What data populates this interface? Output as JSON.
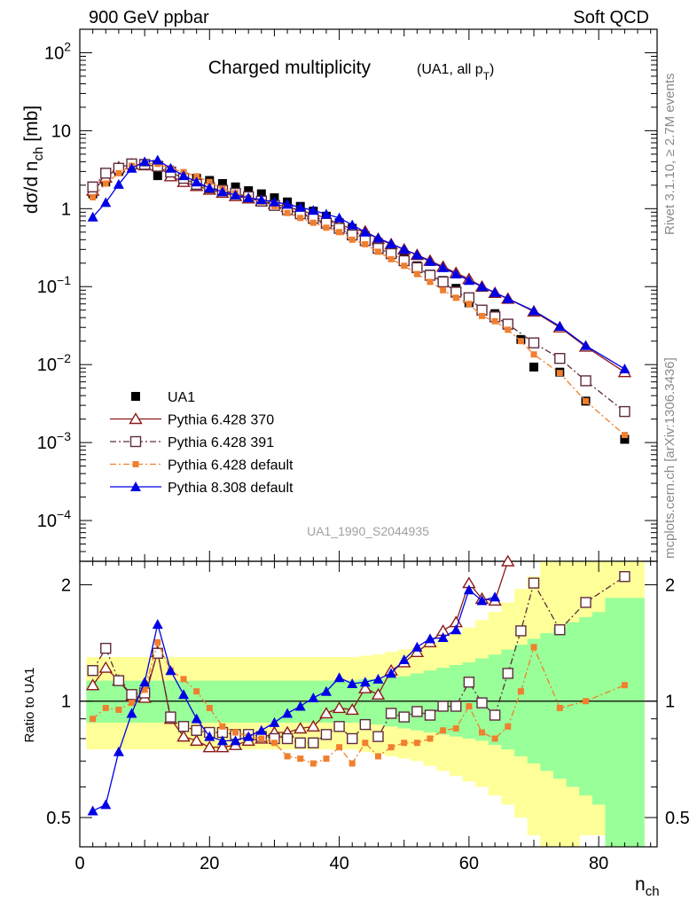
{
  "header": {
    "left": "900 GeV ppbar",
    "right": "Soft QCD"
  },
  "title": {
    "main": "Charged multiplicity",
    "sub_prefix": "(UA1, all p",
    "sub_sub": "T",
    "sub_suffix": ")"
  },
  "side_labels": {
    "top": "Rivet 3.1.10, ≥ 2.7M events",
    "bottom": "mcplots.cern.ch [arXiv:1306.3436]"
  },
  "watermark": "UA1_1990_S2044935",
  "axes": {
    "ylabel_main_prefix": "dσ/d n",
    "ylabel_main_sub": "ch",
    "ylabel_main_suffix": " [mb]",
    "ylabel_ratio": "Ratio to UA1",
    "xlabel": "n",
    "xlabel_sub": "ch"
  },
  "chart_data": [
    {
      "type": "scatter",
      "panel": "main",
      "log_y": true,
      "xlim": [
        0,
        89
      ],
      "ylim": [
        3e-05,
        200
      ],
      "x_ticks": [
        0,
        20,
        40,
        60,
        80
      ],
      "y_ticks": [
        {
          "value": 0.0001,
          "base": "10",
          "exp": "−4"
        },
        {
          "value": 0.001,
          "base": "10",
          "exp": "−3"
        },
        {
          "value": 0.01,
          "base": "10",
          "exp": "−2"
        },
        {
          "value": 0.1,
          "base": "10",
          "exp": "−1"
        },
        {
          "value": 1,
          "base": "1",
          "exp": ""
        },
        {
          "value": 10,
          "base": "10",
          "exp": ""
        },
        {
          "value": 100,
          "base": "10",
          "exp": "2"
        }
      ],
      "legend_position": "bottom-left",
      "series": [
        {
          "name": "UA1",
          "style": "data",
          "color": "#000000",
          "x": [
            2,
            4,
            6,
            8,
            10,
            12,
            14,
            16,
            18,
            20,
            22,
            24,
            26,
            28,
            30,
            32,
            34,
            36,
            38,
            40,
            42,
            44,
            46,
            48,
            50,
            52,
            54,
            56,
            58,
            60,
            62,
            64,
            66,
            68,
            70,
            74,
            78,
            84
          ],
          "y": [
            1.55,
            2.2,
            3.0,
            3.6,
            3.55,
            2.65,
            2.75,
            2.55,
            2.45,
            2.3,
            2.1,
            1.9,
            1.7,
            1.55,
            1.38,
            1.22,
            1.07,
            0.93,
            0.8,
            0.66,
            0.56,
            0.45,
            0.37,
            0.3,
            0.235,
            0.185,
            0.145,
            0.12,
            0.095,
            0.062,
            0.051,
            0.045,
            0.033,
            0.021,
            0.0093,
            0.008,
            0.0034,
            0.0011
          ]
        },
        {
          "name": "Pythia 6.428 370",
          "style": "open-triangle-solid",
          "color": "#8b1a1a",
          "x": [
            2,
            4,
            6,
            8,
            10,
            12,
            14,
            16,
            18,
            20,
            22,
            24,
            26,
            28,
            30,
            32,
            34,
            36,
            38,
            40,
            42,
            44,
            46,
            48,
            50,
            52,
            54,
            56,
            58,
            60,
            62,
            64,
            66,
            70,
            74,
            78,
            84
          ],
          "y": [
            1.7,
            2.5,
            3.4,
            3.7,
            3.6,
            3.55,
            2.6,
            2.2,
            1.95,
            1.75,
            1.6,
            1.45,
            1.35,
            1.25,
            1.15,
            1.05,
            0.95,
            0.85,
            0.76,
            0.63,
            0.55,
            0.51,
            0.41,
            0.35,
            0.3,
            0.255,
            0.215,
            0.18,
            0.15,
            0.125,
            0.1,
            0.083,
            0.07,
            0.048,
            0.03,
            0.017,
            0.008
          ]
        },
        {
          "name": "Pythia 6.428 391",
          "style": "open-square-dashdot",
          "color": "#5e2c3c",
          "x": [
            2,
            4,
            6,
            8,
            10,
            12,
            14,
            16,
            18,
            20,
            22,
            24,
            26,
            28,
            30,
            32,
            34,
            36,
            38,
            40,
            42,
            44,
            46,
            48,
            50,
            52,
            54,
            56,
            58,
            60,
            62,
            64,
            66,
            70,
            74,
            78,
            84
          ],
          "y": [
            1.9,
            2.85,
            3.3,
            3.75,
            3.7,
            3.5,
            2.95,
            2.45,
            2.05,
            1.85,
            1.72,
            1.57,
            1.42,
            1.25,
            1.1,
            0.97,
            0.86,
            0.75,
            0.65,
            0.56,
            0.46,
            0.39,
            0.31,
            0.265,
            0.215,
            0.175,
            0.14,
            0.115,
            0.085,
            0.072,
            0.05,
            0.041,
            0.033,
            0.019,
            0.012,
            0.0062,
            0.0025
          ]
        },
        {
          "name": "Pythia 6.428 default",
          "style": "filled-square-dashdot",
          "color": "#f07f2e",
          "x": [
            2,
            4,
            6,
            8,
            10,
            12,
            14,
            16,
            18,
            20,
            22,
            24,
            26,
            28,
            30,
            32,
            34,
            36,
            38,
            40,
            42,
            44,
            46,
            48,
            50,
            52,
            54,
            56,
            58,
            60,
            62,
            64,
            66,
            68,
            70,
            74,
            78,
            84
          ],
          "y": [
            1.4,
            2.1,
            2.85,
            3.55,
            3.8,
            3.75,
            3.3,
            2.95,
            2.6,
            2.2,
            1.8,
            1.58,
            1.38,
            1.23,
            1.08,
            0.88,
            0.76,
            0.66,
            0.57,
            0.5,
            0.4,
            0.35,
            0.28,
            0.225,
            0.185,
            0.145,
            0.115,
            0.09,
            0.072,
            0.06,
            0.042,
            0.036,
            0.028,
            0.02,
            0.0135,
            0.0078,
            0.0034,
            0.00125
          ]
        },
        {
          "name": "Pythia 8.308 default",
          "style": "filled-triangle-solid",
          "color": "#0000e6",
          "x": [
            2,
            4,
            6,
            8,
            10,
            12,
            14,
            16,
            18,
            20,
            22,
            24,
            26,
            28,
            30,
            32,
            34,
            36,
            38,
            40,
            42,
            44,
            46,
            48,
            50,
            52,
            54,
            56,
            58,
            60,
            62,
            64,
            66,
            70,
            74,
            78,
            84
          ],
          "y": [
            0.78,
            1.2,
            2.05,
            3.3,
            4.0,
            4.2,
            3.3,
            2.65,
            2.2,
            1.85,
            1.65,
            1.5,
            1.38,
            1.3,
            1.22,
            1.14,
            1.04,
            0.95,
            0.85,
            0.76,
            0.62,
            0.5,
            0.42,
            0.355,
            0.3,
            0.255,
            0.21,
            0.175,
            0.145,
            0.12,
            0.1,
            0.084,
            0.07,
            0.049,
            0.031,
            0.0175,
            0.0088
          ]
        }
      ]
    },
    {
      "type": "scatter",
      "panel": "ratio",
      "log_y": true,
      "xlim": [
        0,
        89
      ],
      "ylim": [
        0.42,
        2.3
      ],
      "x_ticks": [
        0,
        20,
        40,
        60,
        80
      ],
      "y_ticks": [
        0.5,
        1,
        2
      ],
      "reference_line": 1,
      "uncertainty_bands": {
        "edges": [
          1,
          3,
          5,
          7,
          9,
          11,
          13,
          15,
          17,
          19,
          21,
          23,
          25,
          27,
          29,
          31,
          33,
          35,
          37,
          39,
          41,
          43,
          45,
          47,
          49,
          51,
          53,
          55,
          57,
          59,
          61,
          63,
          65,
          67,
          69,
          71,
          73,
          75,
          77,
          79,
          81,
          83,
          85,
          87
        ],
        "inner": {
          "color": "#99ff99",
          "lo": [
            0.88,
            0.88,
            0.88,
            0.88,
            0.88,
            0.88,
            0.88,
            0.88,
            0.88,
            0.88,
            0.88,
            0.88,
            0.88,
            0.88,
            0.88,
            0.88,
            0.88,
            0.88,
            0.88,
            0.88,
            0.88,
            0.87,
            0.87,
            0.86,
            0.85,
            0.84,
            0.83,
            0.82,
            0.81,
            0.8,
            0.79,
            0.77,
            0.75,
            0.72,
            0.69,
            0.66,
            0.63,
            0.6,
            0.57,
            0.54,
            0.38,
            0.38,
            0.38
          ],
          "hi": [
            1.13,
            1.13,
            1.13,
            1.13,
            1.13,
            1.13,
            1.13,
            1.13,
            1.13,
            1.13,
            1.13,
            1.13,
            1.13,
            1.13,
            1.13,
            1.13,
            1.13,
            1.13,
            1.13,
            1.13,
            1.13,
            1.14,
            1.14,
            1.15,
            1.16,
            1.18,
            1.2,
            1.22,
            1.24,
            1.26,
            1.29,
            1.32,
            1.36,
            1.4,
            1.45,
            1.5,
            1.55,
            1.6,
            1.65,
            1.7,
            1.85,
            1.85,
            1.85
          ]
        },
        "outer": {
          "color": "#ffff99",
          "lo": [
            0.75,
            0.75,
            0.75,
            0.75,
            0.75,
            0.75,
            0.75,
            0.75,
            0.75,
            0.75,
            0.75,
            0.75,
            0.75,
            0.75,
            0.75,
            0.75,
            0.75,
            0.75,
            0.75,
            0.75,
            0.75,
            0.74,
            0.73,
            0.72,
            0.71,
            0.7,
            0.68,
            0.66,
            0.64,
            0.62,
            0.6,
            0.57,
            0.54,
            0.5,
            0.45,
            0.41,
            0.41,
            0.41,
            0.45,
            0.45,
            0.38,
            0.38,
            0.38
          ],
          "hi": [
            1.3,
            1.3,
            1.3,
            1.3,
            1.3,
            1.3,
            1.3,
            1.3,
            1.3,
            1.3,
            1.3,
            1.3,
            1.3,
            1.3,
            1.3,
            1.3,
            1.3,
            1.3,
            1.3,
            1.3,
            1.3,
            1.31,
            1.32,
            1.34,
            1.36,
            1.38,
            1.41,
            1.45,
            1.5,
            1.55,
            1.62,
            1.7,
            1.8,
            1.95,
            2.1,
            2.3,
            2.3,
            2.3,
            2.3,
            2.3,
            2.3,
            2.3,
            2.3
          ]
        }
      },
      "series": [
        {
          "name": "Pythia 6.428 370",
          "style": "open-triangle-solid",
          "color": "#8b1a1a",
          "x": [
            2,
            4,
            6,
            8,
            10,
            12,
            14,
            16,
            18,
            20,
            22,
            24,
            26,
            28,
            30,
            32,
            34,
            36,
            38,
            40,
            42,
            44,
            46,
            48,
            50,
            52,
            54,
            56,
            58,
            60,
            62,
            64,
            66
          ],
          "y": [
            1.1,
            1.22,
            1.13,
            1.03,
            1.02,
            1.34,
            0.9,
            0.81,
            0.79,
            0.76,
            0.76,
            0.77,
            0.79,
            0.8,
            0.83,
            0.83,
            0.85,
            0.86,
            0.93,
            0.96,
            0.95,
            1.08,
            1.04,
            1.2,
            1.26,
            1.34,
            1.42,
            1.52,
            1.6,
            2.02,
            1.84,
            1.82,
            2.3
          ]
        },
        {
          "name": "Pythia 6.428 391",
          "style": "open-square-dashdot",
          "color": "#5e2c3c",
          "x": [
            2,
            4,
            6,
            8,
            10,
            12,
            14,
            16,
            18,
            20,
            22,
            24,
            26,
            28,
            30,
            32,
            34,
            36,
            38,
            40,
            42,
            44,
            46,
            48,
            50,
            52,
            54,
            56,
            58,
            60,
            62,
            64,
            66,
            68,
            70,
            74,
            78,
            84
          ],
          "y": [
            1.2,
            1.37,
            1.13,
            1.04,
            1.05,
            1.33,
            0.91,
            0.86,
            0.84,
            0.83,
            0.83,
            0.82,
            0.82,
            0.81,
            0.8,
            0.8,
            0.78,
            0.78,
            0.82,
            0.86,
            0.8,
            0.87,
            0.81,
            0.93,
            0.91,
            0.94,
            0.92,
            0.97,
            0.97,
            1.12,
            0.99,
            0.92,
            1.18,
            1.52,
            2.02,
            1.53,
            1.8,
            2.1
          ]
        },
        {
          "name": "Pythia 6.428 default",
          "style": "filled-square-dashdot",
          "color": "#f07f2e",
          "x": [
            2,
            4,
            6,
            8,
            10,
            12,
            14,
            16,
            18,
            20,
            22,
            24,
            26,
            28,
            30,
            32,
            34,
            36,
            38,
            40,
            42,
            44,
            46,
            48,
            50,
            52,
            54,
            56,
            58,
            60,
            62,
            64,
            66,
            68,
            70,
            74,
            78,
            84
          ],
          "y": [
            0.9,
            0.96,
            0.95,
            0.99,
            1.07,
            1.42,
            1.2,
            1.14,
            1.06,
            0.96,
            0.86,
            0.83,
            0.81,
            0.8,
            0.78,
            0.72,
            0.71,
            0.69,
            0.71,
            0.76,
            0.69,
            0.78,
            0.72,
            0.76,
            0.78,
            0.78,
            0.8,
            0.84,
            0.85,
            0.97,
            0.83,
            0.8,
            0.86,
            1.06,
            1.38,
            0.96,
            1.0,
            1.1
          ]
        },
        {
          "name": "Pythia 8.308 default",
          "style": "filled-triangle-solid",
          "color": "#0000e6",
          "x": [
            2,
            4,
            6,
            8,
            10,
            12,
            14,
            16,
            18,
            20,
            22,
            24,
            26,
            28,
            30,
            32,
            34,
            36,
            38,
            40,
            42,
            44,
            46,
            48,
            50,
            52,
            54,
            56,
            58,
            60,
            62,
            64
          ],
          "y": [
            0.52,
            0.54,
            0.74,
            0.93,
            1.12,
            1.58,
            1.2,
            1.04,
            0.9,
            0.81,
            0.79,
            0.79,
            0.81,
            0.84,
            0.88,
            0.93,
            0.97,
            1.02,
            1.06,
            1.15,
            1.11,
            1.12,
            1.14,
            1.18,
            1.28,
            1.38,
            1.45,
            1.46,
            1.53,
            1.94,
            1.82,
            1.86
          ]
        }
      ]
    }
  ]
}
